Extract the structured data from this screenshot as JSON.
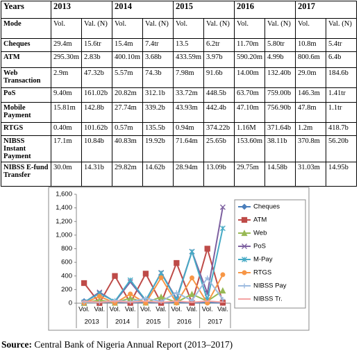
{
  "table": {
    "header": [
      "Years",
      "2013",
      "2014",
      "2015",
      "2016",
      "2017"
    ],
    "subheader": [
      "Mode",
      "Vol.",
      "Val. (N)",
      "Vol.",
      "Val. (N)",
      "Vol.",
      "Val. (N)",
      "Vol.",
      "Val. (N)",
      "Vol.",
      "Val. (N)"
    ],
    "rows": [
      [
        "Cheques",
        "29.4m",
        "15.6tr",
        "15.4m",
        "7.4tr",
        "13.5",
        "6.2tr",
        "11.70m",
        "5.80tr",
        "10.8m",
        "5.4tr"
      ],
      [
        "ATM",
        "295.30m",
        "2.83b",
        "400.10m",
        "3.68b",
        "433.59m",
        "3.97b",
        "590.20m",
        "4.99b",
        "800.6m",
        "6.4b"
      ],
      [
        "Web Transaction",
        "2.9m",
        "47.32b",
        "5.57m",
        "74.3b",
        "7.98m",
        "91.6b",
        "14.00m",
        "132.40b",
        "29.0m",
        "184.6b"
      ],
      [
        "PoS",
        "9.40m",
        "161.02b",
        "20.82m",
        "312.1b",
        "33.72m",
        "448.5b",
        "63.70m",
        "759.00b",
        "146.3m",
        "1.41tr"
      ],
      [
        "Mobile Payment",
        "15.81m",
        "142.8b",
        "27.74m",
        "339.2b",
        "43.93m",
        "442.4b",
        "47.10m",
        "756.90b",
        "47.8m",
        "1.1tr"
      ],
      [
        "RTGS",
        "0.40m",
        "101.62b",
        "0.57m",
        "135.5b",
        "0.94m",
        "374.22b",
        "1.16M",
        "371.64b",
        "1.2m",
        "418.7b"
      ],
      [
        "NIBSS Instant Payment",
        "17.1m",
        "10.84b",
        "40.83m",
        "19.92b",
        "71.64m",
        "25.65b",
        "153.60m",
        "38.11b",
        "370.8m",
        "56.20b"
      ],
      [
        "NIBSS E-fund Transfer",
        "30.0m",
        "14.31b",
        "29.82m",
        "14.62b",
        "28.94m",
        "13.09b",
        "29.75m",
        "14.58b",
        "31.03m",
        "14.95b"
      ]
    ]
  },
  "chart_data": {
    "type": "line",
    "categories": [
      "Vol.",
      "Val.",
      "Vol.",
      "Val.",
      "Vol.",
      "Val.",
      "Vol.",
      "Val.",
      "Vol.",
      "Val."
    ],
    "groups": [
      "2013",
      "2014",
      "2015",
      "2016",
      "2017"
    ],
    "ylim": [
      0,
      1600
    ],
    "yticks": [
      0,
      200,
      400,
      600,
      800,
      {
        "value": 1000,
        "label": "1,000"
      },
      {
        "value": 1200,
        "label": "1,200"
      },
      {
        "value": 1400,
        "label": "1,400"
      },
      {
        "value": 1600,
        "label": "1,600"
      }
    ],
    "series": [
      {
        "name": "Cheques",
        "color": "#4a7ebb",
        "marker": "diamond",
        "values": [
          29.4,
          15.6,
          15.4,
          7.4,
          13.5,
          6.2,
          11.7,
          5.8,
          10.8,
          5.4
        ]
      },
      {
        "name": "ATM",
        "color": "#be4b48",
        "marker": "square",
        "values": [
          295.3,
          2.83,
          400.1,
          3.68,
          433.59,
          3.97,
          590.2,
          4.99,
          800.6,
          6.4
        ]
      },
      {
        "name": "Web",
        "color": "#98b954",
        "marker": "triangle",
        "values": [
          2.9,
          47.32,
          5.57,
          74.3,
          7.98,
          91.6,
          14.0,
          132.4,
          29.0,
          184.6
        ]
      },
      {
        "name": "PoS",
        "color": "#7d60a0",
        "marker": "x",
        "values": [
          9.4,
          161.02,
          20.82,
          312.1,
          33.72,
          448.5,
          63.7,
          759.0,
          146.3,
          1410
        ]
      },
      {
        "name": "M-Pay",
        "color": "#46aac5",
        "marker": "star",
        "values": [
          15.81,
          142.8,
          27.74,
          339.2,
          43.93,
          442.4,
          47.1,
          756.9,
          47.8,
          1100
        ]
      },
      {
        "name": "RTGS",
        "color": "#f79646",
        "marker": "circle",
        "values": [
          0.4,
          101.62,
          0.57,
          135.5,
          0.94,
          374.22,
          1.16,
          371.64,
          1.2,
          418.7
        ]
      },
      {
        "name": "NIBSS Pay",
        "color": "#9dbbe0",
        "marker": "plus",
        "values": [
          17.1,
          10.84,
          40.83,
          19.92,
          71.64,
          25.65,
          153.6,
          38.11,
          370.8,
          56.2
        ]
      },
      {
        "name": "NIBSS Tr.",
        "color": "#f4a3a3",
        "marker": "dash",
        "values": [
          30.0,
          14.31,
          29.82,
          14.62,
          28.94,
          13.09,
          29.75,
          14.58,
          31.03,
          14.95
        ]
      }
    ]
  },
  "source": {
    "label": "Source:",
    "text": "Central Bank of Nigeria Annual Report (2013–2017)"
  }
}
